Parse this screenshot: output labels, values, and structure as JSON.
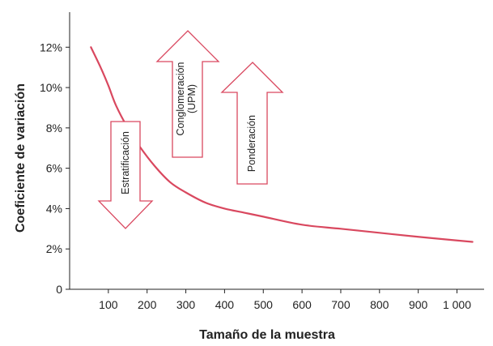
{
  "chart_data": {
    "type": "line",
    "xlabel": "Tamaño de la muestra",
    "ylabel": "Coeficiente de variación",
    "xlim": [
      0,
      1070
    ],
    "ylim": [
      0,
      0.14
    ],
    "x_ticks": [
      {
        "value": 100,
        "label": "100"
      },
      {
        "value": 200,
        "label": "200"
      },
      {
        "value": 300,
        "label": "300"
      },
      {
        "value": 400,
        "label": "400"
      },
      {
        "value": 500,
        "label": "500"
      },
      {
        "value": 600,
        "label": "600"
      },
      {
        "value": 700,
        "label": "700"
      },
      {
        "value": 800,
        "label": "800"
      },
      {
        "value": 900,
        "label": "900"
      },
      {
        "value": 1000,
        "label": "1 000"
      }
    ],
    "y_ticks": [
      {
        "value": 0,
        "label": "0"
      },
      {
        "value": 0.02,
        "label": "2%"
      },
      {
        "value": 0.04,
        "label": "4%"
      },
      {
        "value": 0.06,
        "label": "6%"
      },
      {
        "value": 0.08,
        "label": "8%"
      },
      {
        "value": 0.1,
        "label": "10%"
      },
      {
        "value": 0.12,
        "label": "12%"
      }
    ],
    "grid": false,
    "series": [
      {
        "color": "#d9485f",
        "x": [
          55,
          80,
          100,
          120,
          150,
          180,
          220,
          260,
          300,
          350,
          400,
          450,
          500,
          600,
          700,
          800,
          900,
          1000,
          1040
        ],
        "y": [
          0.12,
          0.11,
          0.101,
          0.091,
          0.08,
          0.071,
          0.061,
          0.053,
          0.048,
          0.043,
          0.04,
          0.038,
          0.036,
          0.032,
          0.03,
          0.028,
          0.026,
          0.0242,
          0.0235
        ]
      }
    ],
    "annotations": [
      {
        "label": "Estratificación",
        "direction": "down",
        "color": "#d9485f"
      },
      {
        "label_lines": [
          "Conglomeración",
          "(UPM)"
        ],
        "direction": "up",
        "color": "#d9485f"
      },
      {
        "label": "Ponderación",
        "direction": "up",
        "color": "#d9485f"
      }
    ]
  }
}
